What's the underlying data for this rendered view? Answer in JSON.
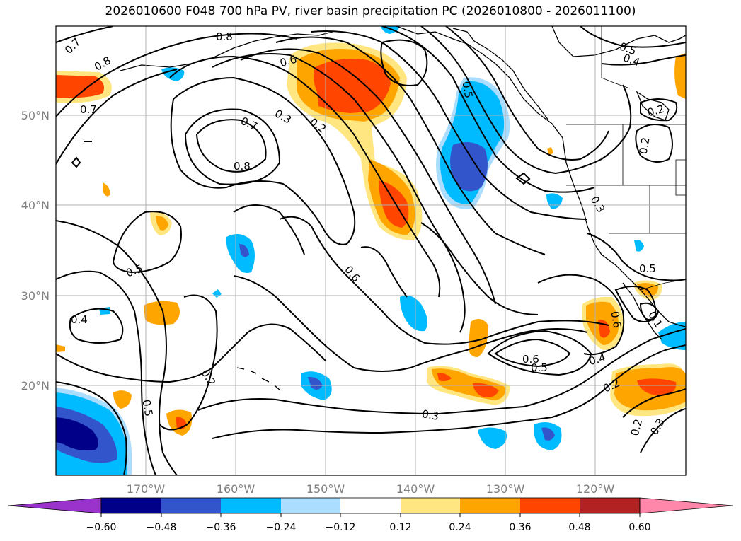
{
  "title": "2026010600 F048 700 hPa PV, river basin precipitation PC (2026010800 - 2026011100)",
  "map": {
    "lon_labels": [
      "170°W",
      "160°W",
      "150°W",
      "140°W",
      "130°W",
      "120°W"
    ],
    "lat_labels": [
      "50°N",
      "40°N",
      "30°N",
      "20°N"
    ],
    "grid": true,
    "contour_labels": [
      "0.7",
      "0.8",
      "0.8",
      "0.6",
      "0.5",
      "0.4",
      "0.7",
      "0.3",
      "0.2",
      "0.7",
      "0.8",
      "0.5",
      "0.2",
      "0.2",
      "0.3",
      "0.5",
      "0.6",
      "0.4",
      "0.5",
      "0.6",
      "0.5",
      "0.4",
      "0.2",
      "0.2",
      "0.5",
      "0.3",
      "0.2",
      "0.3",
      "0.6",
      "0.1"
    ],
    "contour_color": "#000000",
    "land_outline_color": "#000000"
  },
  "colorbar": {
    "ticks": [
      "−0.60",
      "−0.48",
      "−0.36",
      "−0.24",
      "−0.12",
      "0.12",
      "0.24",
      "0.36",
      "0.48",
      "0.60"
    ],
    "colors": [
      "#9933cc",
      "#000088",
      "#3355cc",
      "#00bbff",
      "#aaddff",
      "#ffffff",
      "#ffe680",
      "#ffa500",
      "#ff4500",
      "#b22222",
      "#ff88aa"
    ]
  }
}
